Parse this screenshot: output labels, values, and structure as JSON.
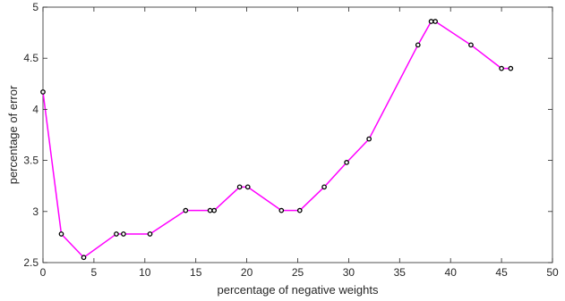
{
  "chart_data": {
    "type": "line",
    "xlabel": "percentage of negative weights",
    "ylabel": "percentage of error",
    "xlim": [
      0,
      50
    ],
    "ylim": [
      2.5,
      5
    ],
    "xticks": [
      0,
      5,
      10,
      15,
      20,
      25,
      30,
      35,
      40,
      45,
      50
    ],
    "yticks": [
      2.5,
      3,
      3.5,
      4,
      4.5,
      5
    ],
    "xtick_labels": [
      "0",
      "5",
      "10",
      "15",
      "20",
      "25",
      "30",
      "35",
      "40",
      "45",
      "50"
    ],
    "ytick_labels": [
      "2.5",
      "3",
      "3.5",
      "4",
      "4.5",
      "5"
    ],
    "grid": false,
    "line_color": "#ff00ff",
    "marker": "open-circle",
    "marker_color": "#000000",
    "series": [
      {
        "x": [
          0,
          1.8,
          4.0,
          7.2,
          7.9,
          10.5,
          14.0,
          16.4,
          16.8,
          19.3,
          20.1,
          23.4,
          25.2,
          27.6,
          29.8,
          32.0,
          36.8,
          38.1,
          38.5,
          42.0,
          45.0,
          45.9
        ],
        "y": [
          4.17,
          2.78,
          2.55,
          2.78,
          2.78,
          2.78,
          3.01,
          3.01,
          3.01,
          3.24,
          3.24,
          3.01,
          3.01,
          3.24,
          3.48,
          3.71,
          4.63,
          4.86,
          4.86,
          4.63,
          4.4,
          4.4
        ]
      }
    ]
  }
}
